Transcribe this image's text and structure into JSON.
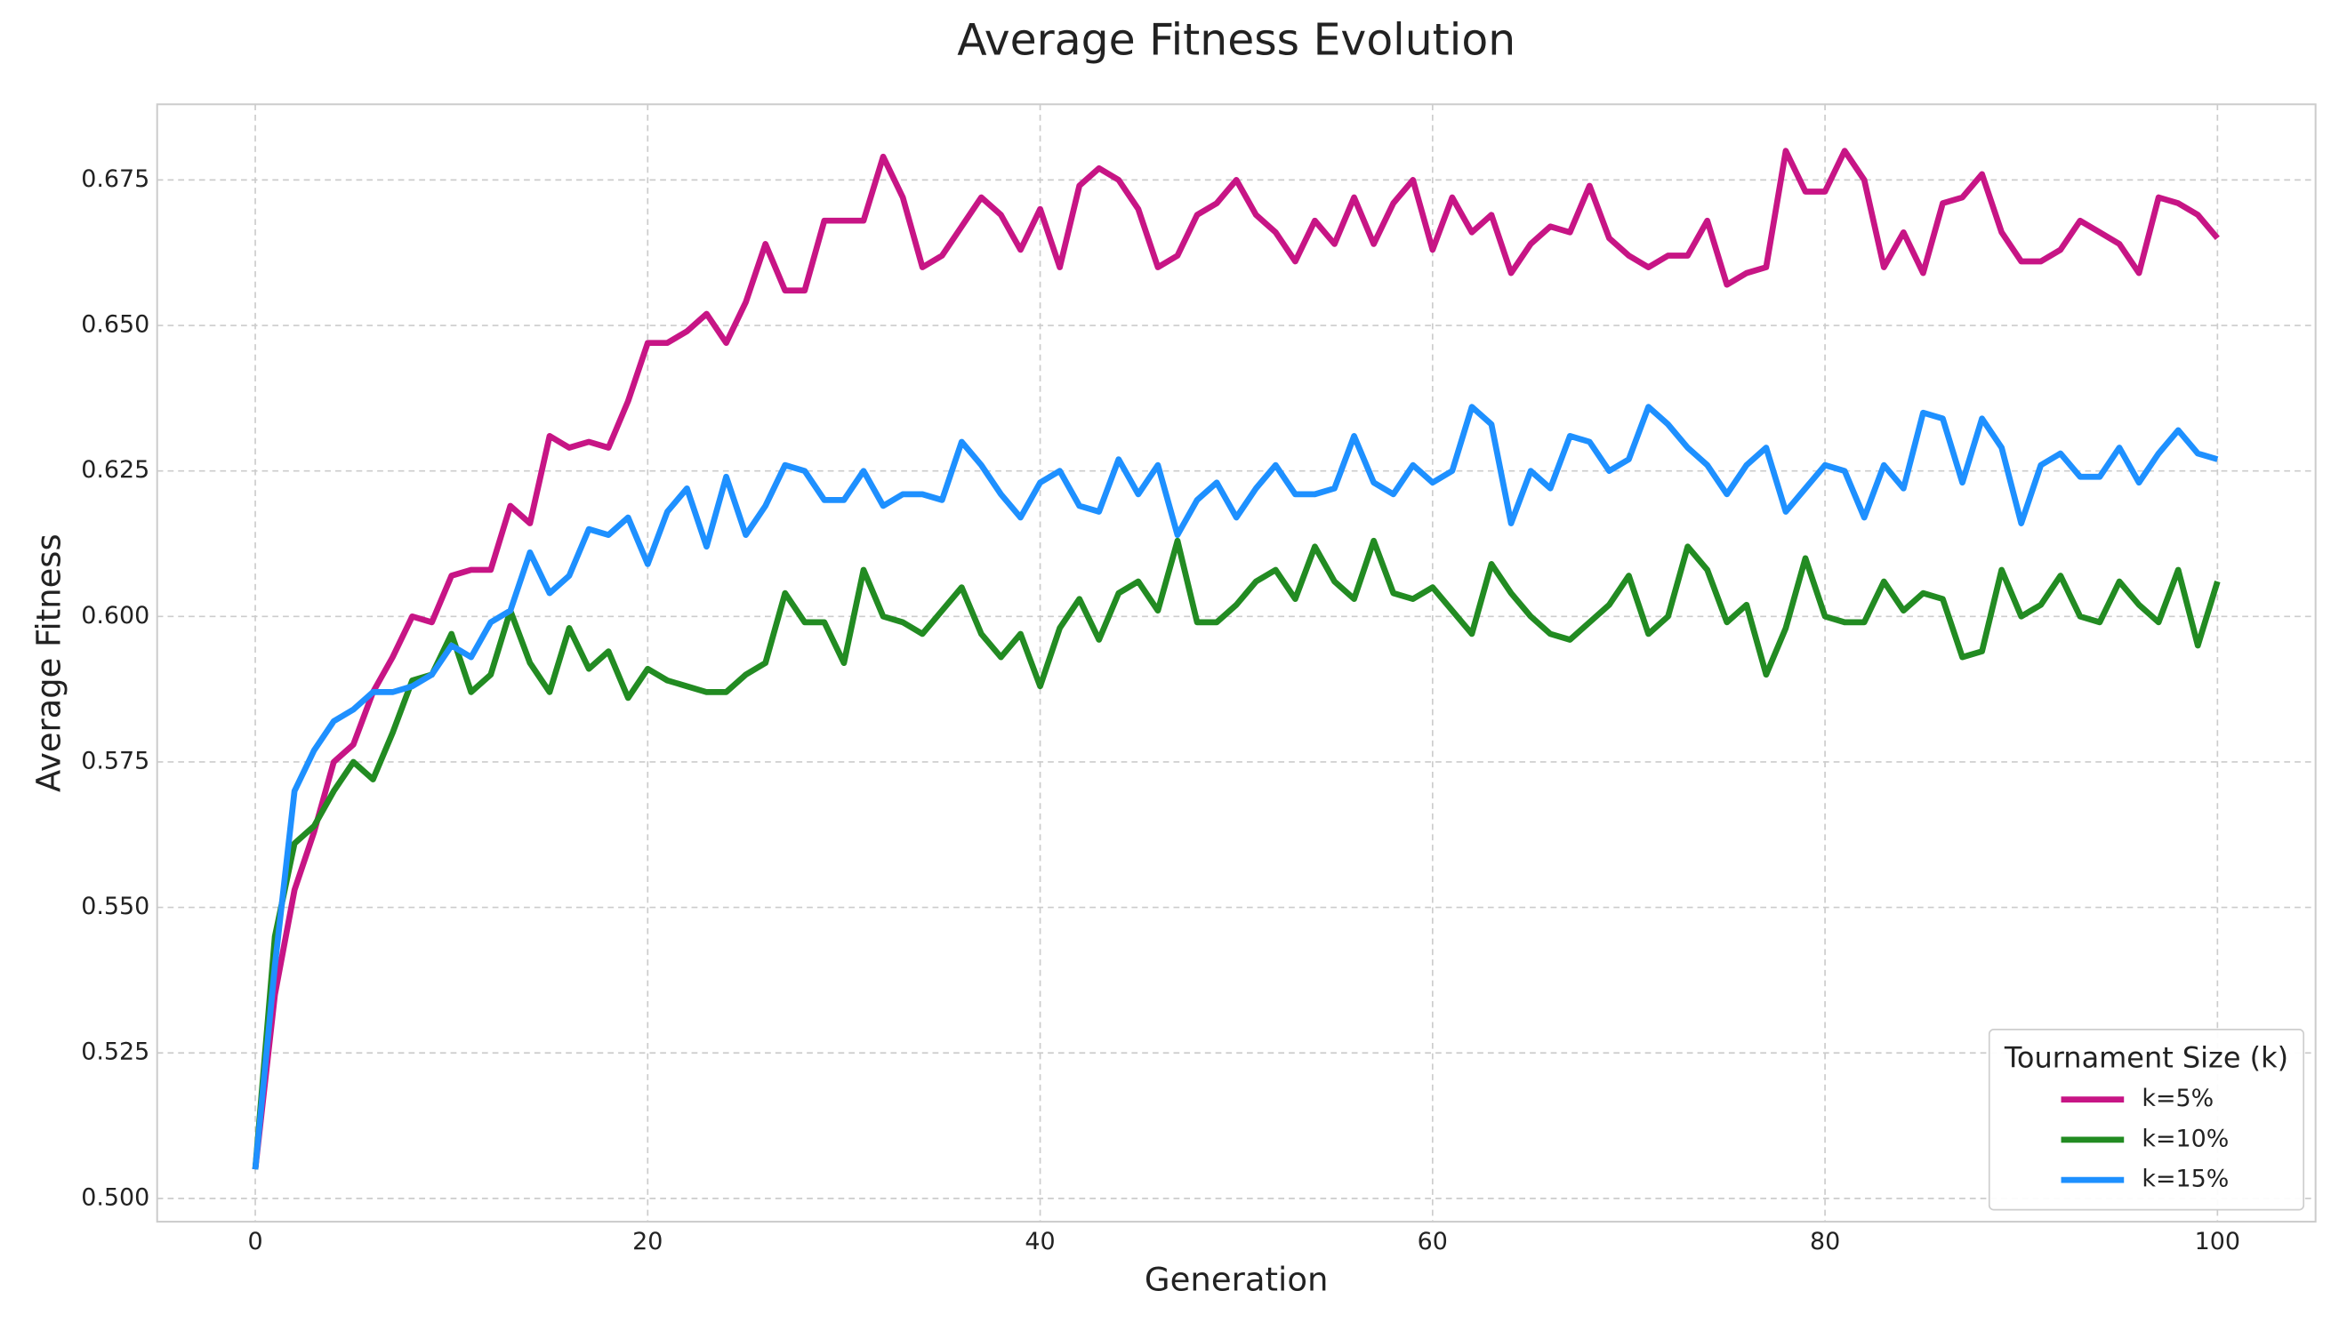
{
  "chart_data": {
    "type": "line",
    "title": "Average Fitness Evolution",
    "x_label": "Generation",
    "y_label": "Average Fitness",
    "x": [
      0,
      1,
      2,
      3,
      4,
      5,
      6,
      7,
      8,
      9,
      10,
      11,
      12,
      13,
      14,
      15,
      16,
      17,
      18,
      19,
      20,
      21,
      22,
      23,
      24,
      25,
      26,
      27,
      28,
      29,
      30,
      31,
      32,
      33,
      34,
      35,
      36,
      37,
      38,
      39,
      40,
      41,
      42,
      43,
      44,
      45,
      46,
      47,
      48,
      49,
      50,
      51,
      52,
      53,
      54,
      55,
      56,
      57,
      58,
      59,
      60,
      61,
      62,
      63,
      64,
      65,
      66,
      67,
      68,
      69,
      70,
      71,
      72,
      73,
      74,
      75,
      76,
      77,
      78,
      79,
      80,
      81,
      82,
      83,
      84,
      85,
      86,
      87,
      88,
      89,
      90,
      91,
      92,
      93,
      94,
      95,
      96,
      97,
      98,
      99,
      100
    ],
    "series": [
      {
        "name": "k=5%",
        "color": "#c71585",
        "values": [
          0.505,
          0.535,
          0.553,
          0.563,
          0.575,
          0.578,
          0.587,
          0.593,
          0.6,
          0.599,
          0.607,
          0.608,
          0.608,
          0.619,
          0.616,
          0.631,
          0.629,
          0.63,
          0.629,
          0.637,
          0.647,
          0.647,
          0.649,
          0.652,
          0.647,
          0.654,
          0.664,
          0.656,
          0.656,
          0.668,
          0.668,
          0.668,
          0.679,
          0.672,
          0.66,
          0.662,
          0.667,
          0.672,
          0.669,
          0.663,
          0.67,
          0.66,
          0.674,
          0.677,
          0.675,
          0.67,
          0.66,
          0.662,
          0.669,
          0.671,
          0.675,
          0.669,
          0.666,
          0.661,
          0.668,
          0.664,
          0.672,
          0.664,
          0.671,
          0.675,
          0.663,
          0.672,
          0.666,
          0.669,
          0.659,
          0.664,
          0.667,
          0.666,
          0.674,
          0.665,
          0.662,
          0.66,
          0.662,
          0.662,
          0.668,
          0.657,
          0.659,
          0.66,
          0.68,
          0.673,
          0.673,
          0.68,
          0.675,
          0.66,
          0.666,
          0.659,
          0.671,
          0.672,
          0.676,
          0.666,
          0.661,
          0.661,
          0.663,
          0.668,
          0.666,
          0.664,
          0.659,
          0.672,
          0.671,
          0.669,
          0.665
        ]
      },
      {
        "name": "k=10%",
        "color": "#228b22",
        "values": [
          0.505,
          0.545,
          0.561,
          0.564,
          0.57,
          0.575,
          0.572,
          0.58,
          0.589,
          0.59,
          0.597,
          0.587,
          0.59,
          0.601,
          0.592,
          0.587,
          0.598,
          0.591,
          0.594,
          0.586,
          0.591,
          0.589,
          0.588,
          0.587,
          0.587,
          0.59,
          0.592,
          0.604,
          0.599,
          0.599,
          0.592,
          0.608,
          0.6,
          0.599,
          0.597,
          0.601,
          0.605,
          0.597,
          0.593,
          0.597,
          0.588,
          0.598,
          0.603,
          0.596,
          0.604,
          0.606,
          0.601,
          0.613,
          0.599,
          0.599,
          0.602,
          0.606,
          0.608,
          0.603,
          0.612,
          0.606,
          0.603,
          0.613,
          0.604,
          0.603,
          0.605,
          0.601,
          0.597,
          0.609,
          0.604,
          0.6,
          0.597,
          0.596,
          0.599,
          0.602,
          0.607,
          0.597,
          0.6,
          0.612,
          0.608,
          0.599,
          0.602,
          0.59,
          0.598,
          0.61,
          0.6,
          0.599,
          0.599,
          0.606,
          0.601,
          0.604,
          0.603,
          0.593,
          0.594,
          0.608,
          0.6,
          0.602,
          0.607,
          0.6,
          0.599,
          0.606,
          0.602,
          0.599,
          0.608,
          0.595,
          0.606
        ]
      },
      {
        "name": "k=15%",
        "color": "#1e90ff",
        "values": [
          0.505,
          0.54,
          0.57,
          0.577,
          0.582,
          0.584,
          0.587,
          0.587,
          0.588,
          0.59,
          0.595,
          0.593,
          0.599,
          0.601,
          0.611,
          0.604,
          0.607,
          0.615,
          0.614,
          0.617,
          0.609,
          0.618,
          0.622,
          0.612,
          0.624,
          0.614,
          0.619,
          0.626,
          0.625,
          0.62,
          0.62,
          0.625,
          0.619,
          0.621,
          0.621,
          0.62,
          0.63,
          0.626,
          0.621,
          0.617,
          0.623,
          0.625,
          0.619,
          0.618,
          0.627,
          0.621,
          0.626,
          0.614,
          0.62,
          0.623,
          0.617,
          0.622,
          0.626,
          0.621,
          0.621,
          0.622,
          0.631,
          0.623,
          0.621,
          0.626,
          0.623,
          0.625,
          0.636,
          0.633,
          0.616,
          0.625,
          0.622,
          0.631,
          0.63,
          0.625,
          0.627,
          0.636,
          0.633,
          0.629,
          0.626,
          0.621,
          0.626,
          0.629,
          0.618,
          0.622,
          0.626,
          0.625,
          0.617,
          0.626,
          0.622,
          0.635,
          0.634,
          0.623,
          0.634,
          0.629,
          0.616,
          0.626,
          0.628,
          0.624,
          0.624,
          0.629,
          0.623,
          0.628,
          0.632,
          0.628,
          0.627
        ]
      }
    ],
    "xlim": [
      -5,
      105
    ],
    "ylim": [
      0.496,
      0.688
    ],
    "xticks": [
      0,
      20,
      40,
      60,
      80,
      100
    ],
    "yticks": [
      {
        "value": 0.5,
        "label": "0.500"
      },
      0.525,
      {
        "value": 0.55,
        "label": "0.550"
      },
      0.575,
      {
        "value": 0.6,
        "label": "0.600"
      },
      0.625,
      {
        "value": 0.65,
        "label": "0.650"
      },
      0.675
    ],
    "grid": true,
    "legend": {
      "title": "Tournament Size (k)",
      "location": "lower right"
    }
  }
}
